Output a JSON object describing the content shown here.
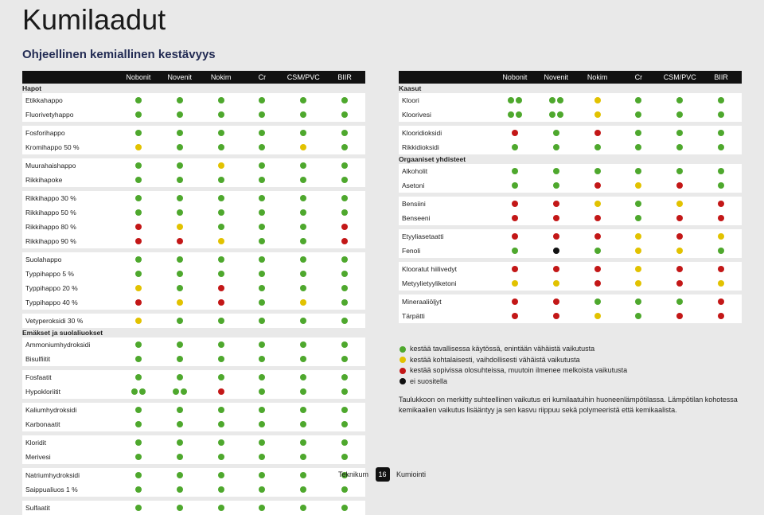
{
  "colors": {
    "g": "#4ea82d",
    "y": "#e2c200",
    "r": "#c31717",
    "k": "#111111"
  },
  "title": "Kumilaadut",
  "subtitle": "Ohjeellinen kemiallinen kestävyys",
  "headers": [
    "Nobonit",
    "Novenit",
    "Nokim",
    "Cr",
    "CSM/PVC",
    "BIIR"
  ],
  "left": [
    {
      "section": "Hapot"
    },
    {
      "label": "Etikkahappo",
      "dots": [
        "g",
        "g",
        "g",
        "g",
        "g",
        "g"
      ]
    },
    {
      "label": "Fluorivetyhappo",
      "dots": [
        "g",
        "g",
        "g",
        "g",
        "g",
        "g"
      ]
    },
    {
      "sep": true
    },
    {
      "label": "Fosforihappo",
      "dots": [
        "g",
        "g",
        "g",
        "g",
        "g",
        "g"
      ]
    },
    {
      "label": "Kromihappo 50 %",
      "dots": [
        "y",
        "g",
        "g",
        "g",
        "y",
        "g"
      ]
    },
    {
      "sep": true
    },
    {
      "label": "Muurahaishappo",
      "dots": [
        "g",
        "g",
        "y",
        "g",
        "g",
        "g"
      ]
    },
    {
      "label": "Rikkihapoke",
      "dots": [
        "g",
        "g",
        "g",
        "g",
        "g",
        "g"
      ]
    },
    {
      "sep": true
    },
    {
      "label": "Rikkihappo 30 %",
      "dots": [
        "g",
        "g",
        "g",
        "g",
        "g",
        "g"
      ]
    },
    {
      "label": "Rikkihappo 50 %",
      "dots": [
        "g",
        "g",
        "g",
        "g",
        "g",
        "g"
      ]
    },
    {
      "label": "Rikkihappo 80 %",
      "dots": [
        "r",
        "y",
        "g",
        "g",
        "g",
        "r"
      ]
    },
    {
      "label": "Rikkihappo 90 %",
      "dots": [
        "r",
        "r",
        "y",
        "g",
        "g",
        "r"
      ]
    },
    {
      "sep": true
    },
    {
      "label": "Suolahappo",
      "dots": [
        "g",
        "g",
        "g",
        "g",
        "g",
        "g"
      ]
    },
    {
      "label": "Typpihappo 5 %",
      "dots": [
        "g",
        "g",
        "g",
        "g",
        "g",
        "g"
      ]
    },
    {
      "label": "Typpihappo 20 %",
      "dots": [
        "y",
        "g",
        "r",
        "g",
        "g",
        "g"
      ]
    },
    {
      "label": "Typpihappo 40 %",
      "dots": [
        "r",
        "y",
        "r",
        "g",
        "y",
        "g"
      ]
    },
    {
      "sep": true
    },
    {
      "label": "Vetyperoksidi 30 %",
      "dots": [
        "y",
        "g",
        "g",
        "g",
        "g",
        "g"
      ]
    },
    {
      "section": "Emäkset ja suolaliuokset"
    },
    {
      "label": "Ammoniumhydroksidi",
      "dots": [
        "g",
        "g",
        "g",
        "g",
        "g",
        "g"
      ]
    },
    {
      "label": "Bisulfiitit",
      "dots": [
        "g",
        "g",
        "g",
        "g",
        "g",
        "g"
      ]
    },
    {
      "sep": true
    },
    {
      "label": "Fosfaatit",
      "dots": [
        "g",
        "g",
        "g",
        "g",
        "g",
        "g"
      ]
    },
    {
      "label": "Hypokloriitit",
      "dots": [
        "gg",
        "gg",
        "r",
        "g",
        "g",
        "g"
      ]
    },
    {
      "sep": true
    },
    {
      "label": "Kaliumhydroksidi",
      "dots": [
        "g",
        "g",
        "g",
        "g",
        "g",
        "g"
      ]
    },
    {
      "label": "Karbonaatit",
      "dots": [
        "g",
        "g",
        "g",
        "g",
        "g",
        "g"
      ]
    },
    {
      "sep": true
    },
    {
      "label": "Kloridit",
      "dots": [
        "g",
        "g",
        "g",
        "g",
        "g",
        "g"
      ]
    },
    {
      "label": "Merivesi",
      "dots": [
        "g",
        "g",
        "g",
        "g",
        "g",
        "g"
      ]
    },
    {
      "sep": true
    },
    {
      "label": "Natriumhydroksidi",
      "dots": [
        "g",
        "g",
        "g",
        "g",
        "g",
        "g"
      ]
    },
    {
      "label": "Saippualiuos 1 %",
      "dots": [
        "g",
        "g",
        "g",
        "g",
        "g",
        "g"
      ]
    },
    {
      "sep": true
    },
    {
      "label": "Sulfaatit",
      "dots": [
        "g",
        "g",
        "g",
        "g",
        "g",
        "g"
      ]
    }
  ],
  "right": [
    {
      "section": "Kaasut"
    },
    {
      "label": "Kloori",
      "dots": [
        "gg",
        "gg",
        "y",
        "g",
        "g",
        "g"
      ]
    },
    {
      "label": "Kloorivesi",
      "dots": [
        "gg",
        "gg",
        "y",
        "g",
        "g",
        "g"
      ]
    },
    {
      "sep": true
    },
    {
      "label": "Klooridioksidi",
      "dots": [
        "r",
        "g",
        "r",
        "g",
        "g",
        "g"
      ]
    },
    {
      "label": "Rikkidioksidi",
      "dots": [
        "g",
        "g",
        "g",
        "g",
        "g",
        "g"
      ]
    },
    {
      "section": "Orgaaniset yhdisteet"
    },
    {
      "label": "Alkoholit",
      "dots": [
        "g",
        "g",
        "g",
        "g",
        "g",
        "g"
      ]
    },
    {
      "label": "Asetoni",
      "dots": [
        "g",
        "g",
        "r",
        "y",
        "r",
        "g"
      ]
    },
    {
      "sep": true
    },
    {
      "label": "Bensiini",
      "dots": [
        "r",
        "r",
        "y",
        "g",
        "y",
        "r"
      ]
    },
    {
      "label": "Benseeni",
      "dots": [
        "r",
        "r",
        "r",
        "g",
        "r",
        "r"
      ]
    },
    {
      "sep": true
    },
    {
      "label": "Etyyliasetaatti",
      "dots": [
        "r",
        "r",
        "r",
        "y",
        "r",
        "y"
      ]
    },
    {
      "label": "Fenoli",
      "dots": [
        "g",
        "k",
        "g",
        "y",
        "y",
        "g"
      ]
    },
    {
      "sep": true
    },
    {
      "label": "Klooratut hiilivedyt",
      "dots": [
        "r",
        "r",
        "r",
        "y",
        "r",
        "r"
      ]
    },
    {
      "label": "Metyylietyyliketoni",
      "dots": [
        "y",
        "y",
        "r",
        "y",
        "r",
        "y"
      ]
    },
    {
      "sep": true
    },
    {
      "label": "Mineraaliöljyt",
      "dots": [
        "r",
        "r",
        "g",
        "g",
        "g",
        "r"
      ]
    },
    {
      "label": "Tärpätti",
      "dots": [
        "r",
        "r",
        "y",
        "g",
        "r",
        "r"
      ]
    }
  ],
  "legend": [
    {
      "c": "g",
      "t": "kestää tavallisessa käytössä, enintään vähäistä vaikutusta"
    },
    {
      "c": "y",
      "t": "kestää kohtalaisesti, vaihdollisesti vähäistä vaikutusta"
    },
    {
      "c": "r",
      "t": "kestää sopivissa olosuhteissa, muutoin ilmenee melkoista vaikutusta"
    },
    {
      "c": "k",
      "t": "ei suositella"
    }
  ],
  "note": "Taulukkoon on merkitty suhteellinen vaikutus eri kumilaatuihin huoneenlämpötilassa. Lämpötilan kohotessa kemikaalien vaikutus lisääntyy ja sen kasvu riippuu sekä polymeeristä että kemikaalista.",
  "footer": {
    "l": "Teknikum",
    "p": "16",
    "r": "Kumiointi"
  }
}
